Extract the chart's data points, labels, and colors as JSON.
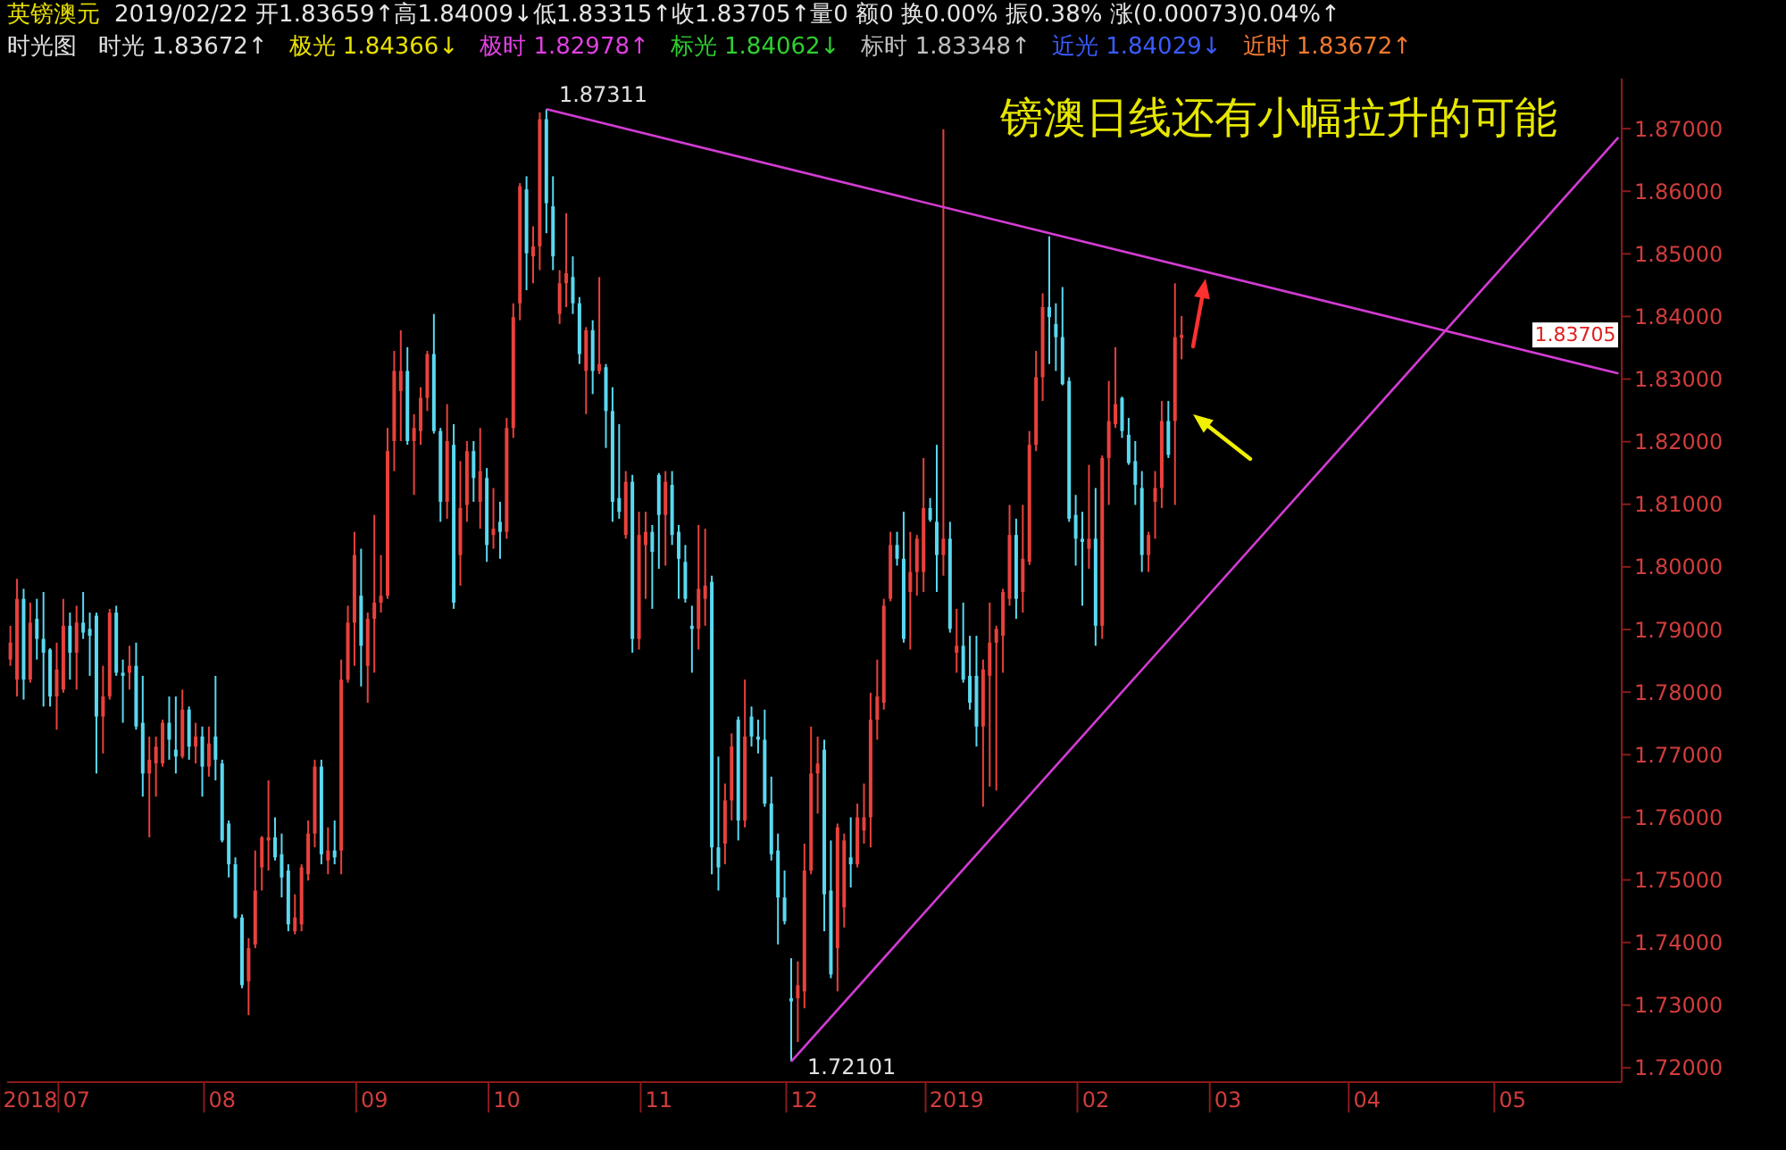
{
  "chart_data": {
    "type": "candlestick",
    "title": "英镑澳元",
    "subtitle": "2019/02/22 开1.83659↑高1.84009↓低1.83315↑收1.83705↑量0 额0 换0.00% 振0.38% 涨(0.00073)0.04%↑",
    "annotations": [
      "时光图",
      "时光 1.83672↑",
      "极光 1.84366↓",
      "极时 1.82978↑",
      "标光 1.84062↓",
      "标时 1.83348↑",
      "近光 1.84029↓",
      "近时 1.83672↑",
      "镑澳日线还有小幅拉升的可能",
      "1.87311",
      "1.72101",
      "1.83705"
    ],
    "categories": [
      null,
      null,
      null,
      "2018",
      null,
      null,
      null,
      null,
      null,
      null,
      "07",
      null,
      null,
      null,
      null,
      null,
      null,
      null,
      null,
      null,
      null,
      null,
      null,
      null,
      null,
      null,
      null,
      null,
      null,
      null,
      null,
      null,
      "08",
      null,
      null,
      null,
      null,
      null,
      null,
      null,
      null,
      null,
      null,
      null,
      null,
      null,
      null,
      null,
      null,
      null,
      null,
      null,
      null,
      null,
      null,
      "09",
      null,
      null,
      null,
      null,
      null,
      null,
      null,
      null,
      null,
      null,
      null,
      null,
      null,
      null,
      null,
      null,
      null,
      null,
      null,
      "10",
      null,
      null,
      null,
      null,
      null,
      null,
      null,
      null,
      null,
      null,
      null,
      null,
      null,
      null,
      null,
      null,
      null,
      null,
      null,
      null,
      null,
      null,
      "11",
      null,
      null,
      null,
      null,
      null,
      null,
      null,
      null,
      null,
      null,
      null,
      null,
      null,
      null,
      null,
      null,
      null,
      null,
      null,
      null,
      null,
      "12",
      null,
      null,
      null,
      null,
      null,
      null,
      null,
      null,
      null,
      null,
      null,
      null,
      null,
      null,
      null,
      null,
      null,
      null,
      null,
      null,
      null,
      null,
      "2019",
      null,
      null,
      null,
      null,
      null,
      null,
      null,
      null,
      null,
      null,
      null,
      null,
      null,
      null,
      null,
      null,
      null,
      null,
      null,
      null,
      "02",
      null,
      null,
      null,
      null,
      null,
      null,
      null,
      null,
      null,
      null,
      null,
      null,
      null,
      null,
      null,
      null,
      null,
      null,
      null,
      "03",
      null,
      null,
      null,
      null,
      null,
      null,
      null,
      null,
      null,
      null,
      null,
      null,
      null,
      null,
      null,
      null,
      null,
      null,
      null,
      null,
      "04",
      null,
      null,
      null,
      null,
      null,
      null,
      null,
      null,
      null,
      null,
      null,
      null,
      null,
      null,
      null,
      null,
      null,
      null,
      null,
      null,
      null,
      "05",
      null,
      null,
      null,
      null,
      null,
      null,
      null,
      null,
      null,
      null,
      null,
      null,
      null,
      null,
      null,
      null
    ],
    "ohlc": [
      [
        1.7852,
        1.7906,
        1.7842,
        1.7879
      ],
      [
        1.782,
        1.7981,
        1.7793,
        1.7949
      ],
      [
        1.7949,
        1.7965,
        1.7788,
        1.782
      ],
      [
        1.782,
        1.7943,
        1.7815,
        1.7911
      ],
      [
        1.7917,
        1.7949,
        1.7852,
        1.7885
      ],
      [
        1.7885,
        1.796,
        1.7777,
        1.7863
      ],
      [
        1.7868,
        1.787,
        1.7777,
        1.7793
      ],
      [
        1.7793,
        1.7879,
        1.774,
        1.7836
      ],
      [
        1.7804,
        1.7949,
        1.7799,
        1.7906
      ],
      [
        1.7906,
        1.7927,
        1.782,
        1.7863
      ],
      [
        1.7863,
        1.7938,
        1.7804,
        1.7911
      ],
      [
        1.7911,
        1.796,
        1.7885,
        1.7895
      ],
      [
        1.7901,
        1.7927,
        1.7826,
        1.789
      ],
      [
        1.7922,
        1.7927,
        1.767,
        1.7761
      ],
      [
        1.7761,
        1.7842,
        1.7702,
        1.7793
      ],
      [
        1.7793,
        1.7933,
        1.7788,
        1.7927
      ],
      [
        1.7927,
        1.7938,
        1.7826,
        1.7831
      ],
      [
        1.7831,
        1.7852,
        1.7751,
        1.7826
      ],
      [
        1.7831,
        1.7874,
        1.7804,
        1.7842
      ],
      [
        1.7842,
        1.7879,
        1.774,
        1.7745
      ],
      [
        1.7751,
        1.7826,
        1.7633,
        1.767
      ],
      [
        1.767,
        1.7729,
        1.7568,
        1.7692
      ],
      [
        1.7686,
        1.7729,
        1.7633,
        1.7713
      ],
      [
        1.7686,
        1.7756,
        1.7681,
        1.7751
      ],
      [
        1.7751,
        1.7793,
        1.7692,
        1.7724
      ],
      [
        1.7708,
        1.7793,
        1.767,
        1.7697
      ],
      [
        1.7697,
        1.7804,
        1.7694,
        1.7772
      ],
      [
        1.7772,
        1.7777,
        1.7692,
        1.7713
      ],
      [
        1.7713,
        1.7751,
        1.7686,
        1.7729
      ],
      [
        1.7729,
        1.7745,
        1.7633,
        1.7681
      ],
      [
        1.7681,
        1.7745,
        1.7665,
        1.7718
      ],
      [
        1.7729,
        1.7826,
        1.7659,
        1.7692
      ],
      [
        1.7686,
        1.7692,
        1.756,
        1.7563
      ],
      [
        1.759,
        1.7595,
        1.7504,
        1.7525
      ],
      [
        1.7525,
        1.7536,
        1.7438,
        1.744
      ],
      [
        1.744,
        1.7445,
        1.7327,
        1.7332
      ],
      [
        1.7338,
        1.7407,
        1.7284,
        1.7391
      ],
      [
        1.7397,
        1.7547,
        1.7391,
        1.7483
      ],
      [
        1.752,
        1.757,
        1.7483,
        1.7568
      ],
      [
        1.7563,
        1.7659,
        1.7515,
        1.7568
      ],
      [
        1.7568,
        1.76,
        1.7531,
        1.7536
      ],
      [
        1.7541,
        1.7574,
        1.7472,
        1.7504
      ],
      [
        1.7515,
        1.7525,
        1.7418,
        1.7429
      ],
      [
        1.7418,
        1.7477,
        1.7413,
        1.744
      ],
      [
        1.7429,
        1.7525,
        1.7418,
        1.752
      ],
      [
        1.7509,
        1.7595,
        1.7499,
        1.7574
      ],
      [
        1.7574,
        1.7692,
        1.7552,
        1.7681
      ],
      [
        1.7681,
        1.7692,
        1.7525,
        1.7541
      ],
      [
        1.7531,
        1.7584,
        1.7509,
        1.7547
      ],
      [
        1.7547,
        1.7595,
        1.7525,
        1.7536
      ],
      [
        1.7547,
        1.7852,
        1.7509,
        1.782
      ],
      [
        1.782,
        1.7938,
        1.7815,
        1.7911
      ],
      [
        1.7911,
        1.8056,
        1.7842,
        1.8019
      ],
      [
        1.7954,
        1.8029,
        1.7809,
        1.7874
      ],
      [
        1.7842,
        1.7927,
        1.7783,
        1.7917
      ],
      [
        1.7917,
        1.8083,
        1.7831,
        1.7943
      ],
      [
        1.7943,
        1.8019,
        1.7927,
        1.7954
      ],
      [
        1.7954,
        1.8222,
        1.7949,
        1.8185
      ],
      [
        1.8201,
        1.8345,
        1.8153,
        1.8313
      ],
      [
        1.8281,
        1.8378,
        1.8201,
        1.8313
      ],
      [
        1.8313,
        1.8351,
        1.8195,
        1.8201
      ],
      [
        1.8201,
        1.8244,
        1.8115,
        1.8222
      ],
      [
        1.8217,
        1.8287,
        1.8195,
        1.827
      ],
      [
        1.827,
        1.8345,
        1.8249,
        1.834
      ],
      [
        1.834,
        1.8404,
        1.8213,
        1.8217
      ],
      [
        1.8217,
        1.8222,
        1.8072,
        1.8104
      ],
      [
        1.8104,
        1.826,
        1.8077,
        1.8201
      ],
      [
        1.8195,
        1.8228,
        1.7933,
        1.7943
      ],
      [
        1.8019,
        1.8169,
        1.797,
        1.8094
      ],
      [
        1.8099,
        1.8201,
        1.8072,
        1.8185
      ],
      [
        1.8185,
        1.8201,
        1.8104,
        1.8142
      ],
      [
        1.8104,
        1.8222,
        1.8061,
        1.8153
      ],
      [
        1.8142,
        1.8158,
        1.8008,
        1.8035
      ],
      [
        1.8051,
        1.8126,
        1.8029,
        1.8061
      ],
      [
        1.8072,
        1.8104,
        1.8013,
        1.8056
      ],
      [
        1.8056,
        1.8238,
        1.8045,
        1.8222
      ],
      [
        1.8222,
        1.8421,
        1.8206,
        1.8399
      ],
      [
        1.8421,
        1.8613,
        1.8394,
        1.8608
      ],
      [
        1.8603,
        1.8624,
        1.8442,
        1.8501
      ],
      [
        1.8496,
        1.8544,
        1.8453,
        1.8512
      ],
      [
        1.8512,
        1.8726,
        1.8474,
        1.8715
      ],
      [
        1.8715,
        1.87311,
        1.8533,
        1.8581
      ],
      [
        1.8576,
        1.8624,
        1.8474,
        1.8496
      ],
      [
        1.8404,
        1.8474,
        1.8388,
        1.8453
      ],
      [
        1.8453,
        1.8565,
        1.8415,
        1.8469
      ],
      [
        1.8463,
        1.8496,
        1.8404,
        1.8421
      ],
      [
        1.8421,
        1.8431,
        1.8324,
        1.834
      ],
      [
        1.8313,
        1.8383,
        1.8244,
        1.8378
      ],
      [
        1.8378,
        1.8394,
        1.8276,
        1.8313
      ],
      [
        1.8313,
        1.8463,
        1.8308,
        1.8324
      ],
      [
        1.8319,
        1.8324,
        1.819,
        1.8249
      ],
      [
        1.8249,
        1.8287,
        1.8072,
        1.8104
      ],
      [
        1.811,
        1.8228,
        1.8077,
        1.8088
      ],
      [
        1.8051,
        1.8153,
        1.8045,
        1.8136
      ],
      [
        1.8136,
        1.8147,
        1.7863,
        1.7885
      ],
      [
        1.7885,
        1.8088,
        1.7868,
        1.8051
      ],
      [
        1.8035,
        1.8088,
        1.7949,
        1.8056
      ],
      [
        1.8056,
        1.8067,
        1.7933,
        1.8024
      ],
      [
        1.8147,
        1.815,
        1.7997,
        1.8083
      ],
      [
        1.8083,
        1.8153,
        1.8002,
        1.8136
      ],
      [
        1.8131,
        1.8153,
        1.8035,
        1.8051
      ],
      [
        1.8056,
        1.8067,
        1.7949,
        1.8013
      ],
      [
        1.8008,
        1.8035,
        1.7943,
        1.7949
      ],
      [
        1.7906,
        1.7938,
        1.7831,
        1.7901
      ],
      [
        1.7901,
        1.8067,
        1.7868,
        1.7965
      ],
      [
        1.7949,
        1.8061,
        1.7906,
        1.797
      ],
      [
        1.7976,
        1.7986,
        1.7509,
        1.7552
      ],
      [
        1.7552,
        1.7697,
        1.7483,
        1.752
      ],
      [
        1.7558,
        1.7654,
        1.7525,
        1.7627
      ],
      [
        1.7627,
        1.7734,
        1.7595,
        1.7713
      ],
      [
        1.7756,
        1.7761,
        1.7563,
        1.7595
      ],
      [
        1.7595,
        1.782,
        1.7584,
        1.7729
      ],
      [
        1.7761,
        1.7777,
        1.7713,
        1.7729
      ],
      [
        1.7729,
        1.7756,
        1.7702,
        1.7724
      ],
      [
        1.7724,
        1.7772,
        1.7617,
        1.7622
      ],
      [
        1.7622,
        1.7665,
        1.7531,
        1.7541
      ],
      [
        1.7547,
        1.7574,
        1.7397,
        1.7472
      ],
      [
        1.7472,
        1.7515,
        1.7429,
        1.7434
      ],
      [
        1.7311,
        1.7375,
        1.72101,
        1.7306
      ],
      [
        1.7311,
        1.737,
        1.7241,
        1.7332
      ],
      [
        1.7322,
        1.7558,
        1.7295,
        1.7515
      ],
      [
        1.7515,
        1.7745,
        1.7509,
        1.767
      ],
      [
        1.767,
        1.7729,
        1.7606,
        1.7686
      ],
      [
        1.7708,
        1.7724,
        1.7418,
        1.7477
      ],
      [
        1.7483,
        1.7563,
        1.7343,
        1.7349
      ],
      [
        1.7391,
        1.759,
        1.7322,
        1.7584
      ],
      [
        1.7456,
        1.7574,
        1.7424,
        1.7563
      ],
      [
        1.7536,
        1.76,
        1.7488,
        1.7525
      ],
      [
        1.7525,
        1.7622,
        1.752,
        1.76
      ],
      [
        1.7579,
        1.7654,
        1.7558,
        1.76
      ],
      [
        1.76,
        1.7799,
        1.7552,
        1.7756
      ],
      [
        1.7756,
        1.7852,
        1.7724,
        1.7793
      ],
      [
        1.7783,
        1.7949,
        1.7772,
        1.7938
      ],
      [
        1.7949,
        1.8056,
        1.7945,
        1.8035
      ],
      [
        1.8035,
        1.8056,
        1.8002,
        1.8013
      ],
      [
        1.8013,
        1.8088,
        1.7879,
        1.7885
      ],
      [
        1.796,
        1.8056,
        1.7868,
        1.7992
      ],
      [
        1.7992,
        1.8051,
        1.7954,
        1.8045
      ],
      [
        1.7992,
        1.8174,
        1.796,
        1.8094
      ],
      [
        1.8094,
        1.811,
        1.8072,
        1.8075
      ],
      [
        1.8072,
        1.8195,
        1.796,
        1.8019
      ],
      [
        1.8019,
        1.8699,
        1.7986,
        1.8045
      ],
      [
        1.8045,
        1.8072,
        1.7895,
        1.7901
      ],
      [
        1.7863,
        1.7933,
        1.7831,
        1.7874
      ],
      [
        1.7874,
        1.7943,
        1.7815,
        1.782
      ],
      [
        1.7826,
        1.789,
        1.7772,
        1.7783
      ],
      [
        1.7826,
        1.789,
        1.7713,
        1.7745
      ],
      [
        1.7745,
        1.7852,
        1.7617,
        1.7836
      ],
      [
        1.7826,
        1.7943,
        1.7649,
        1.7879
      ],
      [
        1.7879,
        1.7906,
        1.7643,
        1.7901
      ],
      [
        1.789,
        1.7965,
        1.7831,
        1.796
      ],
      [
        1.7949,
        1.8099,
        1.7938,
        1.8051
      ],
      [
        1.8051,
        1.8077,
        1.7917,
        1.7949
      ],
      [
        1.796,
        1.8099,
        1.7927,
        1.8013
      ],
      [
        1.8008,
        1.8217,
        1.8003,
        1.8195
      ],
      [
        1.8195,
        1.8345,
        1.8185,
        1.8303
      ],
      [
        1.8303,
        1.8437,
        1.8265,
        1.8415
      ],
      [
        1.8415,
        1.8528,
        1.8324,
        1.8399
      ],
      [
        1.8388,
        1.8421,
        1.8313,
        1.8367
      ],
      [
        1.8367,
        1.8447,
        1.829,
        1.8292
      ],
      [
        1.8297,
        1.8303,
        1.8072,
        1.8077
      ],
      [
        1.8083,
        1.8115,
        1.8002,
        1.8045
      ],
      [
        1.8045,
        1.8088,
        1.7938,
        1.804
      ],
      [
        1.8029,
        1.8163,
        1.7997,
        1.8045
      ],
      [
        1.8045,
        1.8126,
        1.7874,
        1.7906
      ],
      [
        1.7906,
        1.8178,
        1.7885,
        1.8174
      ],
      [
        1.8174,
        1.8297,
        1.8099,
        1.8233
      ],
      [
        1.8228,
        1.8351,
        1.8222,
        1.826
      ],
      [
        1.827,
        1.8272,
        1.8206,
        1.8217
      ],
      [
        1.8211,
        1.8238,
        1.8163,
        1.8166
      ],
      [
        1.8169,
        1.8201,
        1.8099,
        1.8131
      ],
      [
        1.8126,
        1.8153,
        1.7992,
        1.8019
      ],
      [
        1.8019,
        1.8056,
        1.7992,
        1.8051
      ],
      [
        1.8104,
        1.8153,
        1.8045,
        1.8126
      ],
      [
        1.8126,
        1.8265,
        1.8094,
        1.8233
      ],
      [
        1.8233,
        1.8265,
        1.8174,
        1.8179
      ],
      [
        1.8233,
        1.8453,
        1.8099,
        1.8367
      ],
      [
        1.83659,
        1.84009,
        1.83315,
        1.83705
      ],
      null,
      null,
      null,
      null,
      null,
      null,
      null,
      null,
      null,
      null,
      null,
      null,
      null,
      null,
      null,
      null,
      null,
      null,
      null,
      null,
      null,
      null,
      null,
      null,
      null,
      null,
      null,
      null,
      null,
      null,
      null,
      null,
      null,
      null,
      null,
      null,
      null,
      null,
      null,
      null,
      null,
      null,
      null,
      null,
      null,
      null,
      null,
      null,
      null,
      null,
      null,
      null,
      null,
      null,
      null,
      null,
      null,
      null,
      null,
      null,
      null,
      null,
      null,
      null,
      null,
      null
    ],
    "colors": [
      "#e8413c",
      "#e8413c",
      "#5ad8f0",
      "#e8413c",
      "#5ad8f0",
      "#5ad8f0",
      "#5ad8f0",
      "#e8413c",
      "#e8413c",
      "#5ad8f0",
      "#e8413c",
      "#5ad8f0",
      "#5ad8f0",
      "#5ad8f0",
      "#e8413c",
      "#e8413c",
      "#5ad8f0",
      "#5ad8f0",
      "#e8413c",
      "#5ad8f0",
      "#5ad8f0",
      "#e8413c",
      "#e8413c",
      "#e8413c",
      "#5ad8f0",
      "#5ad8f0",
      "#e8413c",
      "#5ad8f0",
      "#e8413c",
      "#5ad8f0",
      "#e8413c",
      "#5ad8f0",
      "#5ad8f0",
      "#5ad8f0",
      "#5ad8f0",
      "#5ad8f0",
      "#e8413c",
      "#e8413c",
      "#e8413c",
      "#e8413c",
      "#5ad8f0",
      "#5ad8f0",
      "#5ad8f0",
      "#e8413c",
      "#e8413c",
      "#e8413c",
      "#e8413c",
      "#5ad8f0",
      "#e8413c",
      "#5ad8f0",
      "#e8413c",
      "#e8413c",
      "#e8413c",
      "#5ad8f0",
      "#e8413c",
      "#e8413c",
      "#e8413c",
      "#e8413c",
      "#e8413c",
      "#e8413c",
      "#5ad8f0",
      "#e8413c",
      "#e8413c",
      "#e8413c",
      "#5ad8f0",
      "#5ad8f0",
      "#e8413c",
      "#5ad8f0",
      "#e8413c",
      "#e8413c",
      "#5ad8f0",
      "#e8413c",
      "#5ad8f0",
      "#e8413c",
      "#5ad8f0",
      "#e8413c",
      "#e8413c",
      "#e8413c",
      "#5ad8f0",
      "#e8413c",
      "#e8413c",
      "#5ad8f0",
      "#5ad8f0",
      "#e8413c",
      "#e8413c",
      "#5ad8f0",
      "#5ad8f0",
      "#e8413c",
      "#5ad8f0",
      "#e8413c",
      "#5ad8f0",
      "#5ad8f0",
      "#5ad8f0",
      "#e8413c",
      "#5ad8f0",
      "#e8413c",
      "#e8413c",
      "#5ad8f0",
      "#5ad8f0",
      "#e8413c",
      "#5ad8f0",
      "#5ad8f0",
      "#5ad8f0",
      "#5ad8f0",
      "#e8413c",
      "#e8413c",
      "#5ad8f0",
      "#5ad8f0",
      "#e8413c",
      "#e8413c",
      "#5ad8f0",
      "#e8413c",
      "#5ad8f0",
      "#5ad8f0",
      "#5ad8f0",
      "#5ad8f0",
      "#5ad8f0",
      "#5ad8f0",
      "#5ad8f0",
      "#e8413c",
      "#e8413c",
      "#e8413c",
      "#e8413c",
      "#5ad8f0",
      "#5ad8f0",
      "#e8413c",
      "#e8413c",
      "#5ad8f0",
      "#e8413c",
      "#e8413c",
      "#e8413c",
      "#e8413c",
      "#e8413c",
      "#e8413c",
      "#5ad8f0",
      "#5ad8f0",
      "#e8413c",
      "#e8413c",
      "#e8413c",
      "#5ad8f0",
      "#5ad8f0",
      "#e8413c",
      "#5ad8f0",
      "#e8413c",
      "#5ad8f0",
      "#5ad8f0",
      "#5ad8f0",
      "#e8413c",
      "#e8413c",
      "#e8413c",
      "#e8413c",
      "#e8413c",
      "#5ad8f0",
      "#e8413c",
      "#e8413c",
      "#e8413c",
      "#e8413c",
      "#5ad8f0",
      "#5ad8f0",
      "#5ad8f0",
      "#5ad8f0",
      "#5ad8f0",
      "#5ad8f0",
      "#e8413c",
      "#5ad8f0",
      "#e8413c",
      "#e8413c",
      "#e8413c",
      "#5ad8f0",
      "#5ad8f0",
      "#5ad8f0",
      "#5ad8f0",
      "#e8413c",
      "#e8413c",
      "#e8413c",
      "#5ad8f0",
      "#e8413c",
      "#e8413c",
      null,
      null,
      null,
      null,
      null,
      null,
      null,
      null,
      null,
      null,
      null,
      null,
      null,
      null,
      null,
      null,
      null,
      null,
      null,
      null,
      null,
      null,
      null,
      null,
      null,
      null,
      null,
      null,
      null,
      null,
      null,
      null,
      null,
      null,
      null,
      null,
      null,
      null,
      null,
      null,
      null,
      null,
      null,
      null,
      null,
      null,
      null,
      null,
      null,
      null,
      null,
      null,
      null,
      null,
      null,
      null,
      null,
      null,
      null,
      null,
      null,
      null,
      null,
      null,
      null,
      null
    ],
    "series": [
      {
        "type": "line",
        "color": "#d23cd2",
        "values": [
          null,
          null,
          null,
          null,
          null,
          null,
          null,
          null,
          null,
          null,
          null,
          null,
          null,
          null,
          null,
          null,
          null,
          null,
          null,
          null,
          null,
          null,
          null,
          null,
          null,
          null,
          null,
          null,
          null,
          null,
          null,
          null,
          null,
          null,
          null,
          null,
          null,
          null,
          null,
          null,
          null,
          null,
          null,
          null,
          null,
          null,
          null,
          null,
          null,
          null,
          null,
          null,
          null,
          null,
          null,
          null,
          null,
          null,
          null,
          null,
          null,
          null,
          null,
          null,
          null,
          null,
          null,
          null,
          null,
          null,
          null,
          null,
          null,
          null,
          null,
          null,
          null,
          null,
          null,
          null,
          null,
          1.8731,
          null,
          null,
          null,
          null,
          null,
          null,
          null,
          null,
          null,
          null,
          null,
          null,
          null,
          null,
          null,
          null,
          null,
          null,
          null,
          null,
          null,
          null,
          null,
          null,
          null,
          null,
          null,
          null,
          null,
          null,
          null,
          null,
          null,
          null,
          null,
          null,
          null,
          null,
          null,
          null,
          null,
          null,
          null,
          null,
          null,
          null,
          null,
          null,
          null,
          null,
          null,
          null,
          null,
          null,
          null,
          null,
          null,
          null,
          null,
          null,
          null,
          null,
          null,
          null,
          null,
          null,
          null,
          null,
          null,
          null,
          null,
          null,
          null,
          null,
          null,
          null,
          null,
          null,
          null,
          null,
          null,
          null,
          null,
          null,
          null,
          null,
          null,
          null,
          null,
          null,
          null,
          null,
          null,
          null,
          null,
          null,
          null,
          null,
          null,
          null,
          null,
          null,
          null,
          null,
          null,
          null,
          null,
          null,
          null,
          null,
          null,
          null,
          null,
          null,
          null,
          null,
          null,
          null,
          null,
          null,
          null,
          null,
          null,
          null,
          null,
          null,
          null,
          null,
          null,
          null,
          null,
          null,
          null,
          null,
          null,
          null,
          null,
          null,
          null,
          null,
          null,
          null,
          null,
          null,
          null,
          null,
          null,
          null,
          null,
          null,
          null,
          null,
          null,
          null,
          null,
          null,
          null,
          null,
          null,
          null,
          null,
          1.8309
        ]
      },
      {
        "type": "line",
        "color": "#d23cd2",
        "values": [
          null,
          null,
          null,
          null,
          null,
          null,
          null,
          null,
          null,
          null,
          null,
          null,
          null,
          null,
          null,
          null,
          null,
          null,
          null,
          null,
          null,
          null,
          null,
          null,
          null,
          null,
          null,
          null,
          null,
          null,
          null,
          null,
          null,
          null,
          null,
          null,
          null,
          null,
          null,
          null,
          null,
          null,
          null,
          null,
          null,
          null,
          null,
          null,
          null,
          null,
          null,
          null,
          null,
          null,
          null,
          null,
          null,
          null,
          null,
          null,
          null,
          null,
          null,
          null,
          null,
          null,
          null,
          null,
          null,
          null,
          null,
          null,
          null,
          null,
          null,
          null,
          null,
          null,
          null,
          null,
          null,
          null,
          null,
          null,
          null,
          null,
          null,
          null,
          null,
          null,
          null,
          null,
          null,
          null,
          null,
          null,
          null,
          null,
          null,
          null,
          null,
          null,
          null,
          null,
          null,
          null,
          null,
          null,
          null,
          null,
          null,
          null,
          null,
          null,
          null,
          null,
          null,
          null,
          1.721,
          null,
          null,
          null,
          null,
          null,
          null,
          null,
          null,
          null,
          null,
          null,
          null,
          null,
          null,
          null,
          null,
          null,
          null,
          null,
          null,
          null,
          null,
          null,
          null,
          null,
          null,
          null,
          null,
          null,
          null,
          null,
          null,
          null,
          null,
          null,
          null,
          null,
          null,
          null,
          null,
          null,
          null,
          null,
          null,
          null,
          null,
          null,
          null,
          null,
          null,
          null,
          null,
          null,
          null,
          null,
          null,
          null,
          null,
          null,
          null,
          null,
          null,
          null,
          null,
          null,
          null,
          null,
          null,
          null,
          null,
          null,
          null,
          null,
          null,
          null,
          null,
          null,
          null,
          null,
          null,
          null,
          null,
          null,
          null,
          null,
          null,
          null,
          null,
          null,
          null,
          null,
          null,
          null,
          null,
          null,
          null,
          null,
          null,
          null,
          null,
          null,
          null,
          null,
          null,
          null,
          null,
          null,
          null,
          null,
          null,
          null,
          null,
          null,
          null,
          null,
          null,
          null,
          null,
          null,
          null,
          null,
          null,
          null,
          null,
          1.8686
        ]
      }
    ],
    "ylim": [
      1.7177,
      1.878
    ],
    "yticks": [
      {
        "value": 1.72,
        "label": "1.72000"
      },
      {
        "value": 1.73,
        "label": "1.73000"
      },
      {
        "value": 1.74,
        "label": "1.74000"
      },
      {
        "value": 1.75,
        "label": "1.75000"
      },
      {
        "value": 1.76,
        "label": "1.76000"
      },
      {
        "value": 1.77,
        "label": "1.77000"
      },
      {
        "value": 1.78,
        "label": "1.78000"
      },
      {
        "value": 1.79,
        "label": "1.79000"
      },
      {
        "value": 1.8,
        "label": "1.80000"
      },
      {
        "value": 1.81,
        "label": "1.81000"
      },
      {
        "value": 1.82,
        "label": "1.82000"
      },
      {
        "value": 1.83,
        "label": "1.83000"
      },
      {
        "value": 1.84,
        "label": "1.84000"
      },
      {
        "value": 1.85,
        "label": "1.85000"
      },
      {
        "value": 1.86,
        "label": "1.86000"
      },
      {
        "value": 1.87,
        "label": "1.87000"
      }
    ]
  }
}
